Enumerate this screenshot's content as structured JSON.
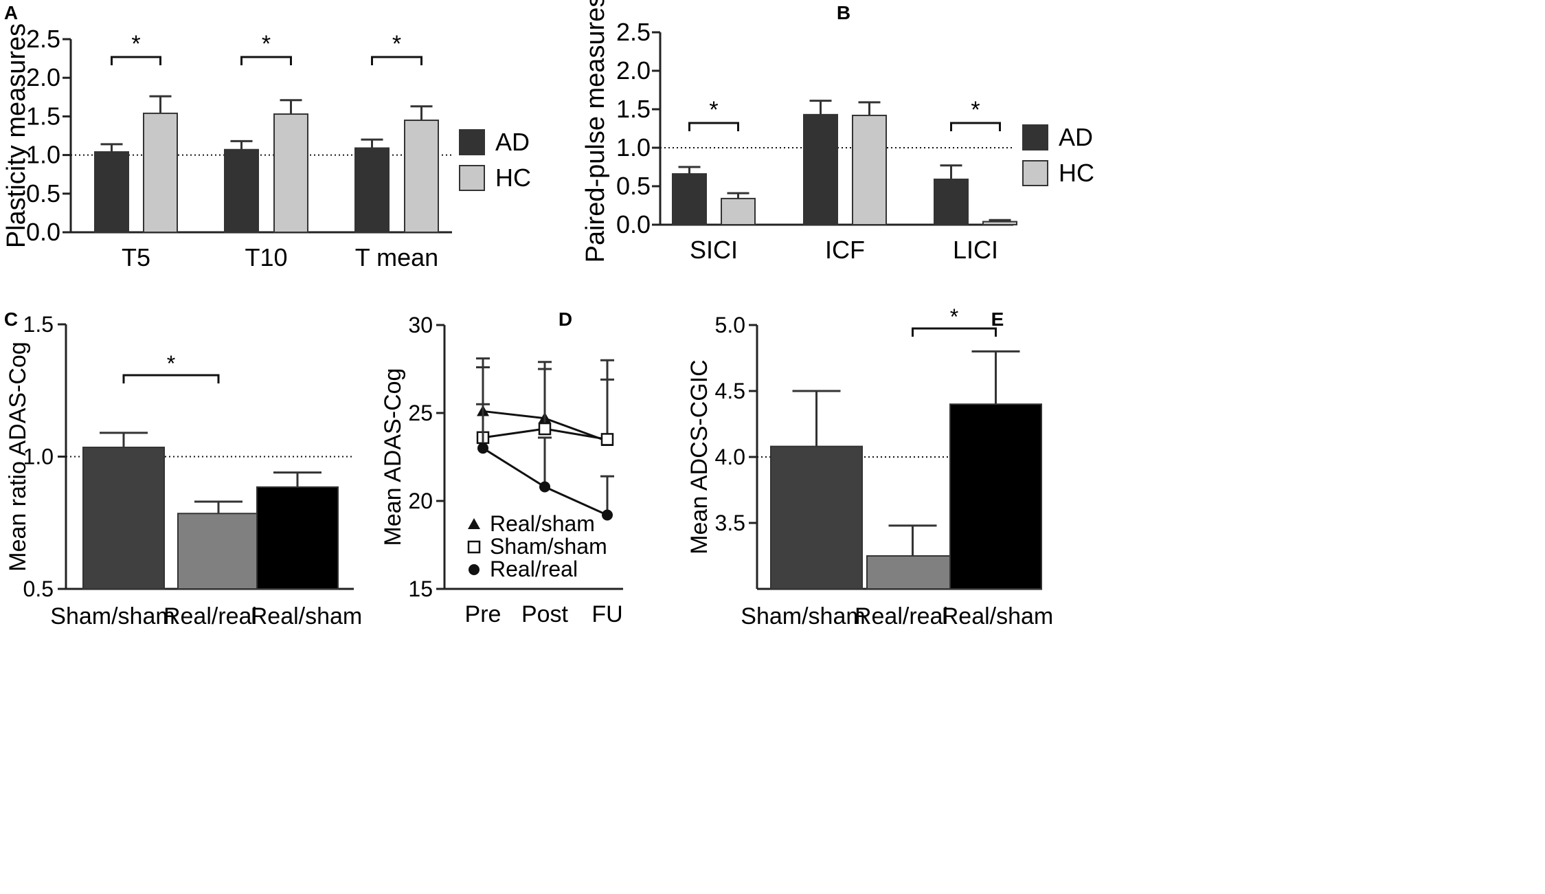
{
  "colors": {
    "ad": "#333333",
    "hc": "#c8c8c8",
    "sham_sham": "#404040",
    "real_real": "#808080",
    "real_sham": "#000000",
    "axis": "#222222"
  },
  "chart_data": [
    {
      "panel": "A",
      "type": "bar",
      "ylabel": "Plasticity measures",
      "categories": [
        "T5",
        "T10",
        "T mean"
      ],
      "ylim": [
        0,
        2.5
      ],
      "yticks": [
        "0.0",
        "0.5",
        "1.0",
        "1.5",
        "2.0",
        "2.5"
      ],
      "reference_line": 1.0,
      "series": [
        {
          "name": "AD",
          "values": [
            1.04,
            1.07,
            1.09
          ],
          "errors": [
            0.1,
            0.11,
            0.11
          ],
          "color_key": "ad"
        },
        {
          "name": "HC",
          "values": [
            1.54,
            1.53,
            1.45
          ],
          "errors": [
            0.22,
            0.18,
            0.18
          ],
          "color_key": "hc"
        }
      ],
      "legend": [
        "AD",
        "HC"
      ],
      "legend_position": "right",
      "significance": [
        {
          "category": 0,
          "label": "*"
        },
        {
          "category": 1,
          "label": "*"
        },
        {
          "category": 2,
          "label": "*"
        }
      ]
    },
    {
      "panel": "B",
      "type": "bar",
      "ylabel": "Paired-pulse measures",
      "categories": [
        "SICI",
        "ICF",
        "LICI"
      ],
      "ylim": [
        0,
        2.5
      ],
      "yticks": [
        "0.0",
        "0.5",
        "1.0",
        "1.5",
        "2.0",
        "2.5"
      ],
      "reference_line": 1.0,
      "series": [
        {
          "name": "AD",
          "values": [
            0.66,
            1.43,
            0.59
          ],
          "errors": [
            0.09,
            0.18,
            0.18
          ],
          "color_key": "ad"
        },
        {
          "name": "HC",
          "values": [
            0.34,
            1.42,
            0.04
          ],
          "errors": [
            0.07,
            0.17,
            0.02
          ],
          "color_key": "hc"
        }
      ],
      "legend": [
        "AD",
        "HC"
      ],
      "legend_position": "right",
      "significance": [
        {
          "category": 0,
          "label": "*"
        },
        {
          "category": 2,
          "label": "*"
        }
      ]
    },
    {
      "panel": "C",
      "type": "bar",
      "ylabel": "Mean ratio ADAS-Cog",
      "categories": [
        "Sham/sham",
        "Real/real",
        "Real/sham"
      ],
      "ylim": [
        0.5,
        1.5
      ],
      "yticks": [
        "0.5",
        "1.0",
        "1.5"
      ],
      "reference_line": 1.0,
      "values": [
        1.035,
        0.785,
        0.885
      ],
      "errors": [
        0.055,
        0.045,
        0.055
      ],
      "color_keys": [
        "sham_sham",
        "real_real",
        "real_sham"
      ],
      "significance": [
        {
          "from": 0,
          "to": 1,
          "label": "*"
        }
      ]
    },
    {
      "panel": "D",
      "type": "line",
      "ylabel": "Mean ADAS-Cog",
      "categories": [
        "Pre",
        "Post",
        "FU"
      ],
      "ylim": [
        15,
        30
      ],
      "yticks": [
        "15",
        "20",
        "25",
        "30"
      ],
      "series": [
        {
          "name": "Real/sham",
          "marker": "triangle",
          "values": [
            25.1,
            24.7,
            23.4
          ],
          "errors": [
            3.0,
            3.2,
            4.6
          ]
        },
        {
          "name": "Sham/sham",
          "marker": "open-square",
          "values": [
            23.6,
            24.1,
            23.5
          ],
          "errors": [
            4.0,
            3.4,
            3.4
          ]
        },
        {
          "name": "Real/real",
          "marker": "filled-circle",
          "values": [
            23.0,
            20.8,
            19.2
          ],
          "errors": [
            2.5,
            2.8,
            2.2
          ]
        }
      ],
      "legend_position": "bottom-left"
    },
    {
      "panel": "E",
      "type": "bar",
      "ylabel": "Mean ADCS-CGIC",
      "categories": [
        "Sham/sham",
        "Real/real",
        "Real/sham"
      ],
      "ylim": [
        3.0,
        5.0
      ],
      "yticks": [
        "3.5",
        "4.0",
        "4.5",
        "5.0"
      ],
      "reference_line": 4.0,
      "values": [
        4.08,
        3.25,
        4.4
      ],
      "errors": [
        0.42,
        0.23,
        0.4
      ],
      "color_keys": [
        "sham_sham",
        "real_real",
        "real_sham"
      ],
      "significance": [
        {
          "from": 1,
          "to": 2,
          "label": "*"
        }
      ]
    }
  ]
}
